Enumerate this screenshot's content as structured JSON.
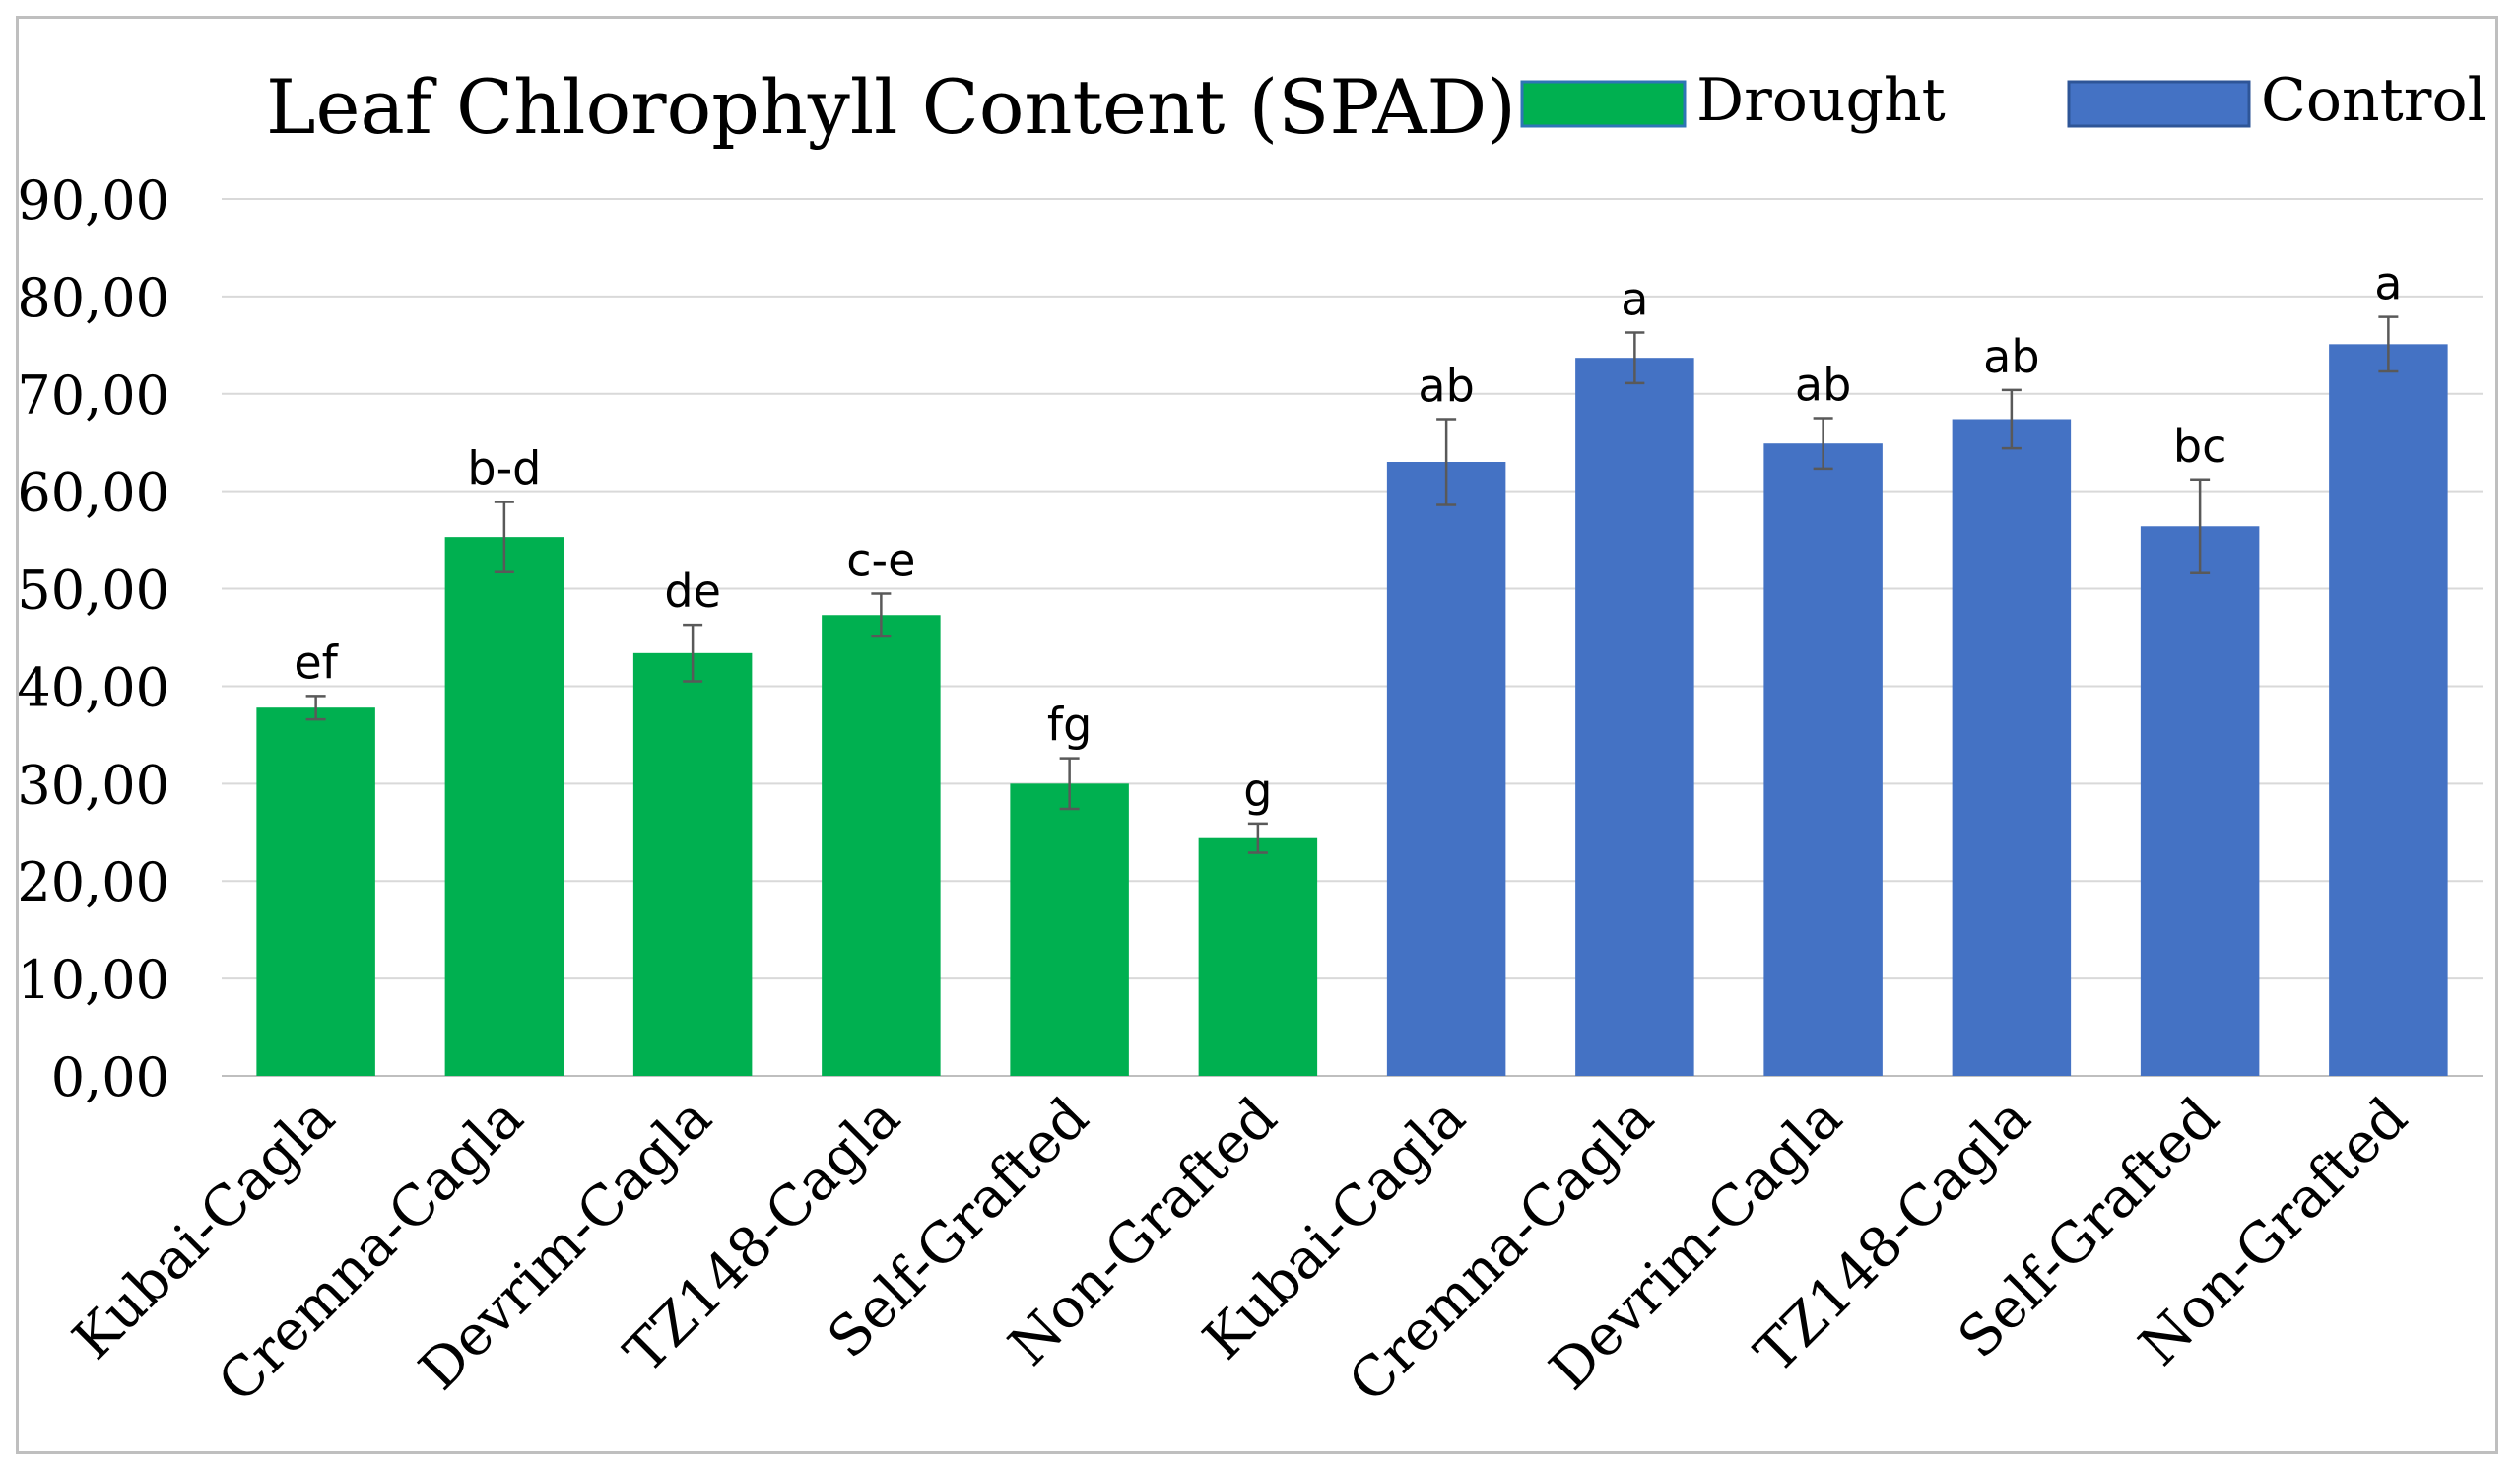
{
  "chart_data": {
    "type": "bar",
    "title": "Leaf Chlorophyll Content (SPAD)",
    "xlabel": "",
    "ylabel": "",
    "ylim": [
      0,
      90
    ],
    "yticks": [
      "0,00",
      "10,00",
      "20,00",
      "30,00",
      "40,00",
      "50,00",
      "60,00",
      "70,00",
      "80,00",
      "90,00"
    ],
    "grid": true,
    "legend_position": "top-right",
    "series": [
      {
        "name": "Drought",
        "color": "#00b050",
        "categories": [
          "Kubai-Cagla",
          "Cremna-Cagla",
          "Devrim-Cagla",
          "TZ148-Cagla",
          "Self-Grafted",
          "Non-Grafted"
        ],
        "values": [
          37.8,
          55.3,
          43.4,
          47.3,
          30.0,
          24.4
        ],
        "errors": [
          1.2,
          3.6,
          2.9,
          2.2,
          2.6,
          1.5
        ],
        "letters": [
          "ef",
          "b-d",
          "de",
          "c-e",
          "fg",
          "g"
        ]
      },
      {
        "name": "Control",
        "color": "#4472c4",
        "categories": [
          "Kubai-Cagla",
          "Cremna-Cagla",
          "Devrim-Cagla",
          "TZ148-Cagla",
          "Self-Grafted",
          "Non-Grafted"
        ],
        "values": [
          63.0,
          73.7,
          64.9,
          67.4,
          56.4,
          75.1
        ],
        "errors": [
          4.4,
          2.6,
          2.6,
          3.0,
          4.8,
          2.8
        ],
        "letters": [
          "ab",
          "a",
          "ab",
          "ab",
          "bc",
          "a"
        ]
      }
    ]
  }
}
